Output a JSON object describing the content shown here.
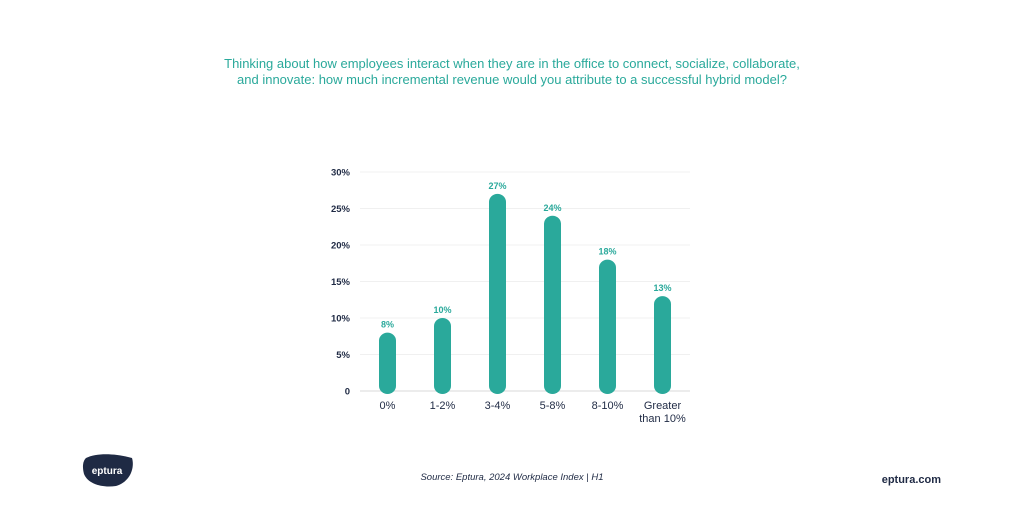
{
  "header": {
    "question_line1": "Thinking about how employees interact when they are in the office to connect, socialize, collaborate,",
    "question_line2": "and innovate: how much incremental revenue would you attribute to a successful hybrid model?"
  },
  "footer": {
    "source": "Source: Eptura, 2024 Workplace Index | H1",
    "site": "eptura.com",
    "logo_text": "eptura"
  },
  "colors": {
    "bar": "#2aa99b",
    "text": "#1f2a44",
    "accent": "#2aa99b",
    "logo": "#1f2a44"
  },
  "chart_data": {
    "type": "bar",
    "categories": [
      "0%",
      "1-2%",
      "3-4%",
      "5-8%",
      "8-10%",
      "Greater than 10%"
    ],
    "values": [
      8,
      10,
      27,
      24,
      18,
      13
    ],
    "data_labels": [
      "8%",
      "10%",
      "27%",
      "24%",
      "18%",
      "13%"
    ],
    "ylim": [
      0,
      30
    ],
    "yticks": [
      0,
      5,
      10,
      15,
      20,
      25,
      30
    ],
    "ytick_labels": [
      "0",
      "5%",
      "10%",
      "15%",
      "20%",
      "25%",
      "30%"
    ],
    "title": "",
    "xlabel": "",
    "ylabel": "",
    "grid": true
  }
}
